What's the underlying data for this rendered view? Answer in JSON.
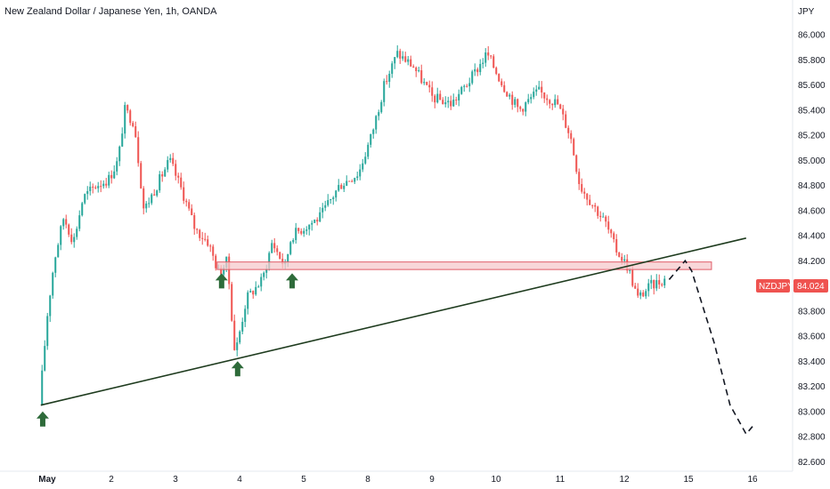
{
  "chart_data": {
    "type": "candlestick",
    "title": "New Zealand Dollar / Japanese Yen, 1h, OANDA",
    "currency": "JPY",
    "symbol": "NZDJPY",
    "last_price": "84.024",
    "ylim": [
      82.6,
      86.1
    ],
    "y_ticks": [
      "86.000",
      "85.800",
      "85.600",
      "85.400",
      "85.200",
      "85.000",
      "84.800",
      "84.600",
      "84.400",
      "84.200",
      "84.000",
      "83.800",
      "83.600",
      "83.400",
      "83.200",
      "83.000",
      "82.800",
      "82.600"
    ],
    "x_ticks": [
      {
        "label": "May",
        "day": 1
      },
      {
        "label": "2",
        "day": 2
      },
      {
        "label": "3",
        "day": 3
      },
      {
        "label": "4",
        "day": 4
      },
      {
        "label": "5",
        "day": 5
      },
      {
        "label": "8",
        "day": 6
      },
      {
        "label": "9",
        "day": 7
      },
      {
        "label": "10",
        "day": 8
      },
      {
        "label": "11",
        "day": 9
      },
      {
        "label": "12",
        "day": 10
      },
      {
        "label": "15",
        "day": 11
      },
      {
        "label": "16",
        "day": 12
      }
    ],
    "price_path": [
      [
        0.92,
        83.05
      ],
      [
        1.05,
        83.8
      ],
      [
        1.15,
        84.2
      ],
      [
        1.3,
        84.55
      ],
      [
        1.45,
        84.35
      ],
      [
        1.6,
        84.7
      ],
      [
        1.8,
        84.8
      ],
      [
        2.0,
        84.85
      ],
      [
        2.15,
        85.0
      ],
      [
        2.25,
        85.4
      ],
      [
        2.4,
        85.3
      ],
      [
        2.55,
        84.6
      ],
      [
        2.75,
        84.8
      ],
      [
        2.95,
        85.0
      ],
      [
        3.15,
        84.75
      ],
      [
        3.35,
        84.45
      ],
      [
        3.55,
        84.35
      ],
      [
        3.72,
        84.1
      ],
      [
        3.85,
        84.2
      ],
      [
        3.97,
        83.45
      ],
      [
        4.15,
        83.9
      ],
      [
        4.4,
        84.05
      ],
      [
        4.55,
        84.35
      ],
      [
        4.75,
        84.15
      ],
      [
        4.85,
        84.4
      ],
      [
        5.0,
        84.45
      ],
      [
        5.3,
        84.55
      ],
      [
        5.6,
        84.8
      ],
      [
        5.9,
        84.9
      ],
      [
        6.1,
        85.2
      ],
      [
        6.3,
        85.6
      ],
      [
        6.5,
        85.85
      ],
      [
        6.75,
        85.75
      ],
      [
        7.05,
        85.5
      ],
      [
        7.35,
        85.45
      ],
      [
        7.65,
        85.65
      ],
      [
        7.9,
        85.85
      ],
      [
        8.15,
        85.6
      ],
      [
        8.4,
        85.4
      ],
      [
        8.7,
        85.55
      ],
      [
        9.0,
        85.45
      ],
      [
        9.2,
        85.2
      ],
      [
        9.35,
        84.8
      ],
      [
        9.55,
        84.65
      ],
      [
        9.75,
        84.5
      ],
      [
        9.9,
        84.3
      ],
      [
        10.1,
        84.15
      ],
      [
        10.25,
        83.9
      ],
      [
        10.45,
        84.0
      ],
      [
        10.65,
        84.05
      ]
    ],
    "annotations": {
      "trendline": {
        "from": [
          0.9,
          83.05
        ],
        "to": [
          11.9,
          84.38
        ]
      },
      "resistance_zone": {
        "x_from": 3.65,
        "x_to": 11.36,
        "y_from": 84.13,
        "y_to": 84.19
      },
      "projection": [
        [
          10.7,
          84.05
        ],
        [
          10.95,
          84.2
        ],
        [
          11.05,
          84.12
        ],
        [
          11.4,
          83.55
        ],
        [
          11.65,
          83.05
        ],
        [
          11.9,
          82.82
        ],
        [
          12.0,
          82.88
        ]
      ],
      "arrows": [
        [
          0.93,
          83.0
        ],
        [
          3.72,
          84.1
        ],
        [
          3.97,
          83.4
        ],
        [
          4.82,
          84.1
        ]
      ]
    },
    "colors": {
      "up": "#26a69a",
      "down": "#ef5350",
      "zone_fill": "#f6c9cc",
      "zone_stroke": "#e05c68",
      "trend": "#1e3b1e",
      "arrow": "#2e6b3a",
      "badge": "#ef5350"
    }
  }
}
